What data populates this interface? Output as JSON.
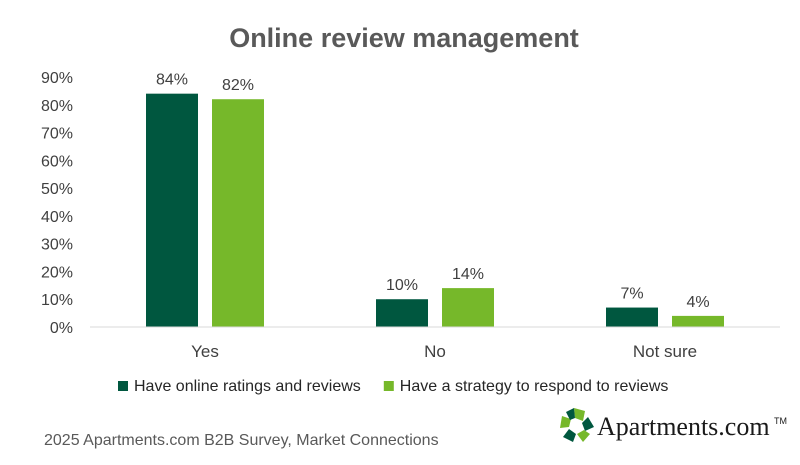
{
  "chart_data": {
    "type": "bar",
    "title": "Online review management",
    "categories": [
      "Yes",
      "No",
      "Not sure"
    ],
    "series": [
      {
        "name": "Have online ratings and reviews",
        "values": [
          84,
          10,
          7
        ],
        "labels": [
          "84%",
          "10%",
          "7%"
        ],
        "color": "#00573f"
      },
      {
        "name": "Have a strategy to respond to reviews",
        "values": [
          82,
          14,
          4
        ],
        "labels": [
          "82%",
          "14%",
          "4%"
        ],
        "color": "#76b82a"
      }
    ],
    "ylim": [
      0,
      90
    ],
    "yticks": [
      0,
      10,
      20,
      30,
      40,
      50,
      60,
      70,
      80,
      90
    ],
    "ytick_labels": [
      "0%",
      "10%",
      "20%",
      "30%",
      "40%",
      "50%",
      "60%",
      "70%",
      "80%",
      "90%"
    ],
    "grid": false,
    "legend_position": "bottom"
  },
  "footer": {
    "source": "2025 Apartments.com B2B Survey, Market Connections",
    "brand_name": "Apartments.com",
    "brand_tm": "TM",
    "logo_colors": [
      "#00573f",
      "#76b82a"
    ],
    "logo_icon": "pinwheel-logo-icon"
  }
}
